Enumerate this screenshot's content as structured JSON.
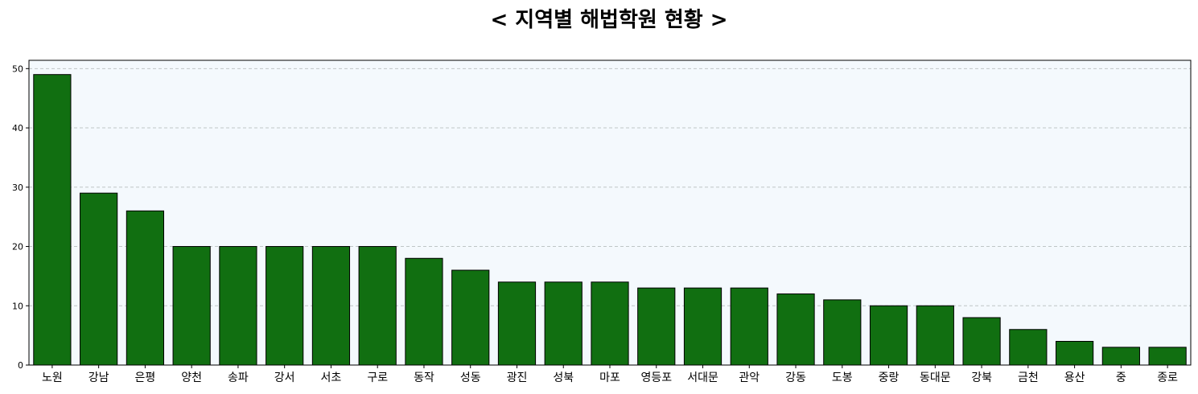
{
  "chart_data": {
    "type": "bar",
    "title": "< 지역별 해법학원 현황 >",
    "xlabel": "",
    "ylabel": "",
    "categories": [
      "노원",
      "강남",
      "은평",
      "양천",
      "송파",
      "강서",
      "서초",
      "구로",
      "동작",
      "성동",
      "광진",
      "성북",
      "마포",
      "영등포",
      "서대문",
      "관악",
      "강동",
      "도봉",
      "중랑",
      "동대문",
      "강북",
      "금천",
      "용산",
      "중",
      "종로"
    ],
    "values": [
      49,
      29,
      26,
      20,
      20,
      20,
      20,
      20,
      18,
      16,
      14,
      14,
      14,
      13,
      13,
      13,
      12,
      11,
      10,
      10,
      8,
      6,
      4,
      3,
      3
    ],
    "ylim": [
      0,
      51.4
    ],
    "yticks": [
      0,
      10,
      20,
      30,
      40,
      50
    ],
    "grid": "y-dashed",
    "bar_color": "#116f11",
    "bar_edge_color": "#000000",
    "plot_background": "#f4f9fd",
    "grid_color": "#bfc6c6"
  }
}
